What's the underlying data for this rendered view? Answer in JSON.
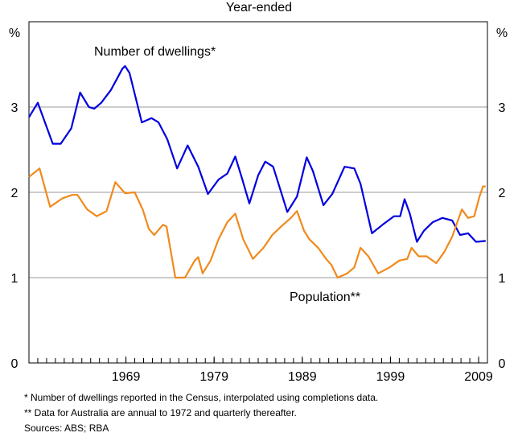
{
  "chart_data": {
    "type": "line",
    "subtitle": "Year-ended",
    "y_unit": "%",
    "xlim": [
      1958,
      2010
    ],
    "xticks": [
      1969,
      1979,
      1989,
      1999,
      2009
    ],
    "ylim": [
      0,
      4
    ],
    "yticks": [
      0,
      1,
      2,
      3
    ],
    "grid": true,
    "series": [
      {
        "name": "Number of dwellings*",
        "color": "#0000e0",
        "x": [
          1958,
          1959,
          1960.7,
          1961.6,
          1962.8,
          1963.8,
          1964.8,
          1965.4,
          1966.2,
          1967.3,
          1968.6,
          1968.9,
          1969.4,
          1970.8,
          1971.9,
          1972.7,
          1973.7,
          1974.8,
          1976,
          1977.2,
          1978.3,
          1979.5,
          1980.5,
          1981.4,
          1982.2,
          1983,
          1984,
          1984.8,
          1985.7,
          1987.3,
          1988.4,
          1989.5,
          1990.2,
          1991.4,
          1992.4,
          1993.8,
          1994.9,
          1995.6,
          1996.9,
          1998.1,
          1999.4,
          2000.1,
          2000.6,
          2001.2,
          2002,
          2002.8,
          2003.8,
          2004.9,
          2006,
          2006.9,
          2007.8,
          2008.7,
          2009.8
        ],
        "values": [
          2.88,
          3.05,
          2.57,
          2.57,
          2.75,
          3.17,
          3.0,
          2.98,
          3.05,
          3.2,
          3.45,
          3.48,
          3.4,
          2.82,
          2.87,
          2.82,
          2.62,
          2.28,
          2.55,
          2.3,
          1.98,
          2.15,
          2.22,
          2.42,
          2.15,
          1.87,
          2.2,
          2.36,
          2.3,
          1.77,
          1.95,
          2.41,
          2.25,
          1.85,
          1.98,
          2.3,
          2.28,
          2.1,
          1.52,
          1.62,
          1.72,
          1.72,
          1.92,
          1.75,
          1.42,
          1.55,
          1.65,
          1.7,
          1.67,
          1.5,
          1.52,
          1.42,
          1.43
        ]
      },
      {
        "name": "Population**",
        "color": "#f08a1c",
        "x": [
          1958,
          1959.2,
          1960.4,
          1961.8,
          1962.9,
          1963.5,
          1964.6,
          1965.7,
          1966.8,
          1967.8,
          1968.9,
          1970,
          1970.9,
          1971.6,
          1972.2,
          1973.2,
          1973.6,
          1974.6,
          1975.7,
          1976.8,
          1977.2,
          1977.7,
          1978.6,
          1979.5,
          1980.5,
          1981.4,
          1982.3,
          1983.4,
          1984.6,
          1985.6,
          1986.6,
          1987.7,
          1988.4,
          1989.2,
          1989.8,
          1990.8,
          1991.7,
          1992.3,
          1993,
          1994.1,
          1994.9,
          1995.6,
          1996.5,
          1997.6,
          1998.9,
          2000,
          2000.9,
          2001.4,
          2002.2,
          2003.1,
          2004.2,
          2005.1,
          2006,
          2007.1,
          2007.8,
          2008.5,
          2009.1,
          2009.5,
          2009.8
        ],
        "values": [
          2.18,
          2.28,
          1.83,
          1.93,
          1.97,
          1.97,
          1.8,
          1.72,
          1.78,
          2.12,
          1.99,
          2.0,
          1.8,
          1.57,
          1.5,
          1.62,
          1.6,
          1.0,
          1.0,
          1.2,
          1.24,
          1.05,
          1.2,
          1.45,
          1.65,
          1.75,
          1.45,
          1.22,
          1.35,
          1.5,
          1.6,
          1.7,
          1.78,
          1.55,
          1.45,
          1.35,
          1.22,
          1.15,
          1.0,
          1.05,
          1.12,
          1.35,
          1.25,
          1.05,
          1.12,
          1.2,
          1.22,
          1.35,
          1.25,
          1.25,
          1.17,
          1.3,
          1.48,
          1.8,
          1.7,
          1.72,
          1.95,
          2.07,
          2.07
        ]
      }
    ],
    "notes": [
      "*   Number of dwellings reported in the Census, interpolated using completions data.",
      "** Data for Australia are annual to 1972 and quarterly thereafter.",
      "Sources: ABS; RBA"
    ]
  }
}
